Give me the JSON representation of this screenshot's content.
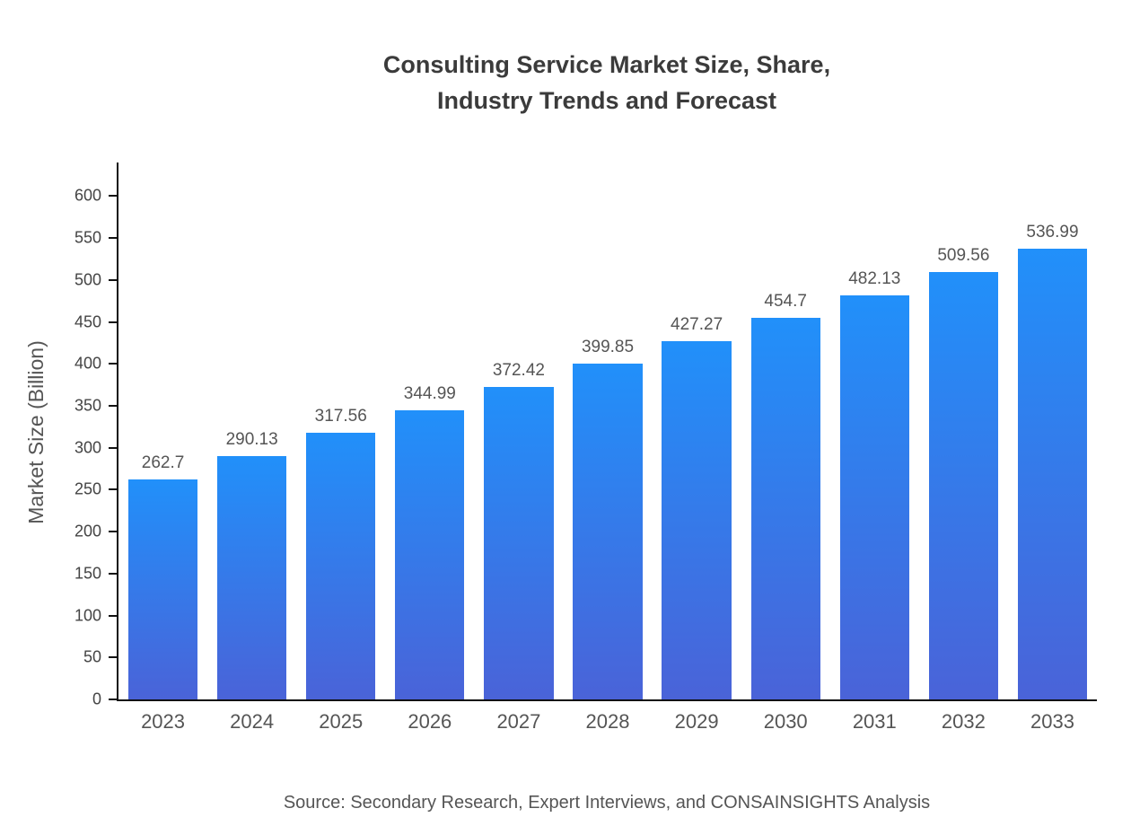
{
  "title": {
    "line1": "Consulting Service Market Size, Share,",
    "line2": "Industry Trends and Forecast"
  },
  "y_axis_title": "Market Size (Billion)",
  "source": "Source: Secondary Research, Expert Interviews, and CONSAINSIGHTS Analysis",
  "colors": {
    "bar_top": "#2190fa",
    "bar_bottom": "#4a63d8",
    "axis": "#111111",
    "value_label": "#555555",
    "tick_label": "#444444"
  },
  "chart_data": {
    "type": "bar",
    "title": "Consulting Service Market Size, Share, Industry Trends and Forecast",
    "categories": [
      "2023",
      "2024",
      "2025",
      "2026",
      "2027",
      "2028",
      "2029",
      "2030",
      "2031",
      "2032",
      "2033"
    ],
    "values": [
      262.7,
      290.13,
      317.56,
      344.99,
      372.42,
      399.85,
      427.27,
      454.7,
      482.13,
      509.56,
      536.99
    ],
    "xlabel": "",
    "ylabel": "Market Size (Billion)",
    "ylim": [
      0,
      640
    ],
    "yticks": [
      0,
      50,
      100,
      150,
      200,
      250,
      300,
      350,
      400,
      450,
      500,
      550,
      600
    ],
    "grid": false,
    "legend": "none"
  }
}
